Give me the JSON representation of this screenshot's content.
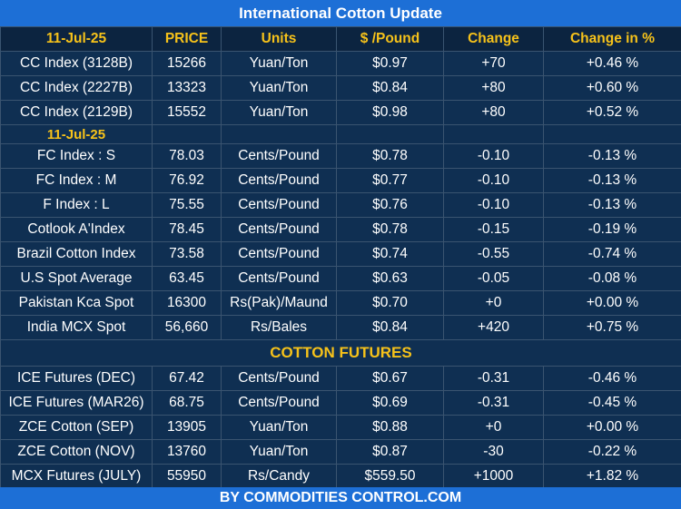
{
  "title": "International Cotton Update",
  "footer": "BY  COMMODITIES CONTROL.COM",
  "header": [
    "11-Jul-25",
    "PRICE",
    "Units",
    "$ /Pound",
    "Change",
    "Change in %"
  ],
  "cc_rows": [
    [
      "CC Index (3128B)",
      "15266",
      "Yuan/Ton",
      "$0.97",
      "+70",
      "+0.46 %"
    ],
    [
      "CC Index (2227B)",
      "13323",
      "Yuan/Ton",
      "$0.84",
      "+80",
      "+0.60 %"
    ],
    [
      "CC Index (2129B)",
      "15552",
      "Yuan/Ton",
      "$0.98",
      "+80",
      "+0.52 %"
    ]
  ],
  "date2": "11-Jul-25",
  "index_rows": [
    [
      "FC Index : S",
      "78.03",
      "Cents/Pound",
      "$0.78",
      "-0.10",
      "-0.13 %"
    ],
    [
      "FC Index : M",
      "76.92",
      "Cents/Pound",
      "$0.77",
      "-0.10",
      "-0.13 %"
    ],
    [
      "F Index : L",
      "75.55",
      "Cents/Pound",
      "$0.76",
      "-0.10",
      "-0.13 %"
    ],
    [
      "Cotlook A'Index",
      "78.45",
      "Cents/Pound",
      "$0.78",
      "-0.15",
      "-0.19 %"
    ],
    [
      "Brazil Cotton Index",
      "73.58",
      "Cents/Pound",
      "$0.74",
      "-0.55",
      "-0.74 %"
    ],
    [
      "U.S Spot Average",
      "63.45",
      "Cents/Pound",
      "$0.63",
      "-0.05",
      "-0.08 %"
    ],
    [
      "Pakistan Kca Spot",
      "16300",
      "Rs(Pak)/Maund",
      "$0.70",
      "+0",
      "+0.00 %"
    ],
    [
      "India MCX Spot",
      "56,660",
      "Rs/Bales",
      "$0.84",
      "+420",
      "+0.75 %"
    ]
  ],
  "futures_title": "COTTON FUTURES",
  "futures_rows": [
    [
      "ICE Futures (DEC)",
      "67.42",
      "Cents/Pound",
      "$0.67",
      "-0.31",
      "-0.46 %"
    ],
    [
      "ICE Futures (MAR26)",
      "68.75",
      "Cents/Pound",
      "$0.69",
      "-0.31",
      "-0.45 %"
    ],
    [
      "ZCE Cotton (SEP)",
      "13905",
      "Yuan/Ton",
      "$0.88",
      "+0",
      "+0.00 %"
    ],
    [
      "ZCE Cotton (NOV)",
      "13760",
      "Yuan/Ton",
      "$0.87",
      "-30",
      "-0.22 %"
    ],
    [
      "MCX Futures (JULY)",
      "55950",
      "Rs/Candy",
      "$559.50",
      "+1000",
      "+1.82 %"
    ]
  ]
}
